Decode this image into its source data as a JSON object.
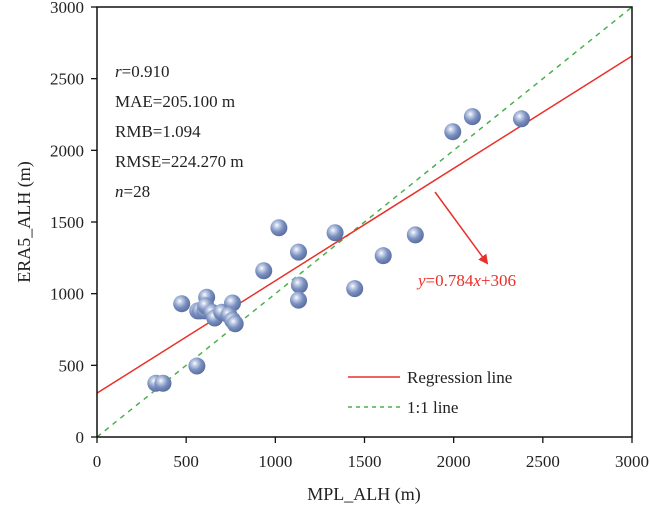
{
  "chart_data": {
    "type": "scatter",
    "title": "",
    "xlabel": "MPL_ALH (m)",
    "ylabel": "ERA5_ALH (m)",
    "xlim": [
      0,
      3000
    ],
    "ylim": [
      0,
      3000
    ],
    "xticks": [
      0,
      500,
      1000,
      1500,
      2000,
      2500,
      3000
    ],
    "yticks": [
      0,
      500,
      1000,
      1500,
      2000,
      2500,
      3000
    ],
    "grid": false,
    "points": [
      {
        "x": 330,
        "y": 375
      },
      {
        "x": 370,
        "y": 375
      },
      {
        "x": 560,
        "y": 495
      },
      {
        "x": 475,
        "y": 930
      },
      {
        "x": 565,
        "y": 880
      },
      {
        "x": 580,
        "y": 880
      },
      {
        "x": 605,
        "y": 880
      },
      {
        "x": 615,
        "y": 975
      },
      {
        "x": 610,
        "y": 915
      },
      {
        "x": 645,
        "y": 870
      },
      {
        "x": 660,
        "y": 830
      },
      {
        "x": 700,
        "y": 870
      },
      {
        "x": 760,
        "y": 935
      },
      {
        "x": 740,
        "y": 850
      },
      {
        "x": 760,
        "y": 815
      },
      {
        "x": 775,
        "y": 790
      },
      {
        "x": 935,
        "y": 1160
      },
      {
        "x": 1020,
        "y": 1460
      },
      {
        "x": 1130,
        "y": 1290
      },
      {
        "x": 1135,
        "y": 1060
      },
      {
        "x": 1130,
        "y": 955
      },
      {
        "x": 1335,
        "y": 1425
      },
      {
        "x": 1445,
        "y": 1035
      },
      {
        "x": 1605,
        "y": 1265
      },
      {
        "x": 1785,
        "y": 1410
      },
      {
        "x": 1995,
        "y": 2130
      },
      {
        "x": 2105,
        "y": 2235
      },
      {
        "x": 2380,
        "y": 2220
      }
    ],
    "regression": {
      "slope": 0.784,
      "intercept": 306,
      "color": "#e8312a"
    },
    "one_to_one": {
      "color": "#4caf50"
    },
    "point_color": "#7088b8",
    "stats": {
      "r_label": "r",
      "r_value": "=0.910",
      "mae": "MAE=205.100 m",
      "rmb": "RMB=1.094",
      "rmse": "RMSE=224.270 m",
      "n_label": "n",
      "n_value": "=28"
    },
    "equation": {
      "y": "y",
      "mid": "=0.784",
      "x": "x",
      "tail": "+306"
    },
    "legend": {
      "position": "bottom-right",
      "entries": [
        "Regression line",
        "1:1 line"
      ]
    }
  }
}
